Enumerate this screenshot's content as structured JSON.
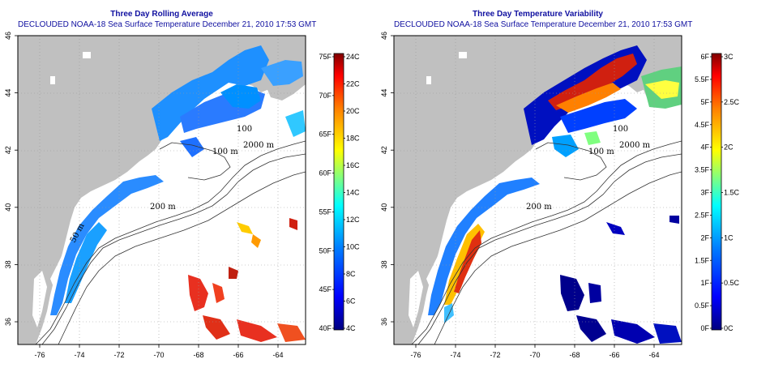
{
  "panels": [
    {
      "id": "left",
      "title_line1": "Three Day Rolling Average",
      "title_line2": "DECLOUDED NOAA-18 Sea Surface Temperature December 21, 2010 17:53 GMT",
      "colorbar": {
        "left_labels": [
          "75F",
          "70F",
          "65F",
          "60F",
          "55F",
          "50F",
          "45F",
          "40F"
        ],
        "right_labels": [
          "24C",
          "22C",
          "20C",
          "18C",
          "16C",
          "14C",
          "12C",
          "10C",
          "8C",
          "6C",
          "4C"
        ]
      }
    },
    {
      "id": "right",
      "title_line1": "Three Day Temperature Variability",
      "title_line2": "DECLOUDED NOAA-18 Sea Surface Temperature December 21, 2010 17:53 GMT",
      "colorbar": {
        "left_labels": [
          "6F",
          "5.5F",
          "5F",
          "4.5F",
          "4F",
          "3.5F",
          "3F",
          "2.5F",
          "2F",
          "1.5F",
          "1F",
          "0.5F",
          "0F"
        ],
        "right_labels": [
          "3C",
          "2.5C",
          "2C",
          "1.5C",
          "1C",
          "0.5C",
          "0C"
        ]
      }
    }
  ],
  "axes": {
    "x_ticks": [
      "-76",
      "-74",
      "-72",
      "-70",
      "-68",
      "-66",
      "-64"
    ],
    "y_ticks": [
      "46",
      "44",
      "42",
      "40",
      "38",
      "36"
    ]
  },
  "contour_labels": [
    "100",
    "100 m",
    "2000 m",
    "200 m",
    "50 m"
  ],
  "colors": {
    "land": "#c0c0c0",
    "ocean_background": "#ffffff",
    "title": "#1010a0",
    "colormap": [
      "#000080",
      "#0000ff",
      "#0080ff",
      "#00ffff",
      "#80ff80",
      "#ffff00",
      "#ff8000",
      "#ff0000",
      "#800000"
    ]
  }
}
